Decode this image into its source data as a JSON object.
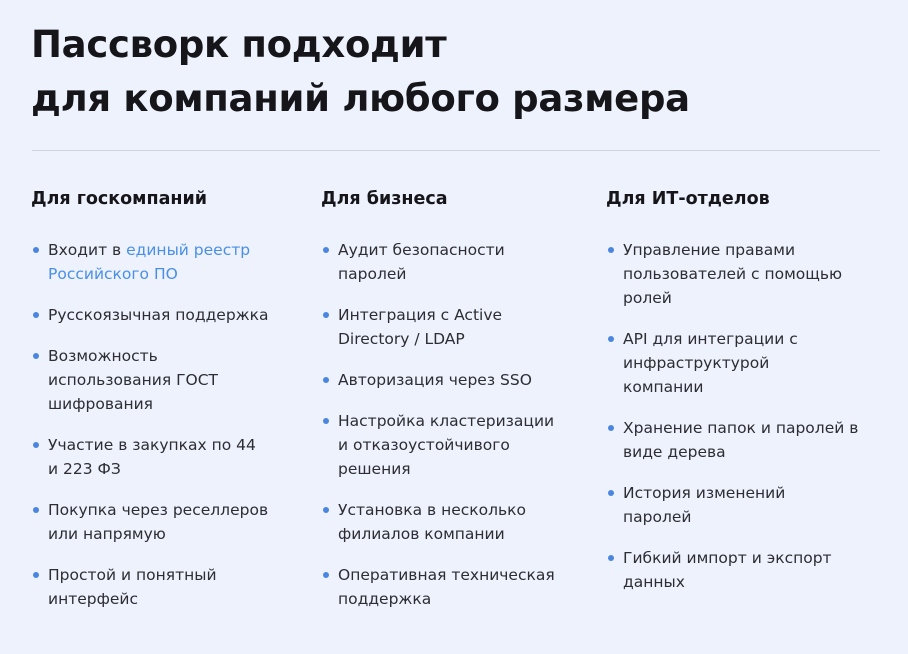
{
  "title": {
    "line1": "Пассворк подходит",
    "line2": "для компаний любого размера"
  },
  "colors": {
    "background": "#eef2fd",
    "accent": "#4a8fe6",
    "bullet": "#4a86e0"
  },
  "columns": [
    {
      "heading": "Для госкомпаний",
      "items": [
        {
          "prefix": "Входит в ",
          "link": "единый реестр Российского ПО"
        },
        {
          "text": "Русскоязычная поддержка"
        },
        {
          "text": "Возможность использования ГОСТ шифрования"
        },
        {
          "text": "Участие в закупках по 44 и 223 ФЗ"
        },
        {
          "text": "Покупка через реселлеров или напрямую"
        },
        {
          "text": "Простой и понятный интерфейс"
        }
      ]
    },
    {
      "heading": "Для бизнеса",
      "items": [
        {
          "text": "Аудит безопасности паролей"
        },
        {
          "text": "Интеграция с Active Directory / LDAP"
        },
        {
          "text": "Авторизация через SSO"
        },
        {
          "text": "Настройка кластеризации и отказоустойчивого решения"
        },
        {
          "text": "Установка в несколько филиалов компании"
        },
        {
          "text": "Оперативная техническая поддержка"
        }
      ]
    },
    {
      "heading": "Для ИТ-отделов",
      "items": [
        {
          "text": "Управление правами пользователей с помощью ролей"
        },
        {
          "text": "API для интеграции с инфраструктурой компании"
        },
        {
          "text": "Хранение папок и паролей в виде дерева"
        },
        {
          "text": "История изменений паролей"
        },
        {
          "text": "Гибкий импорт и экспорт данных"
        }
      ]
    }
  ]
}
